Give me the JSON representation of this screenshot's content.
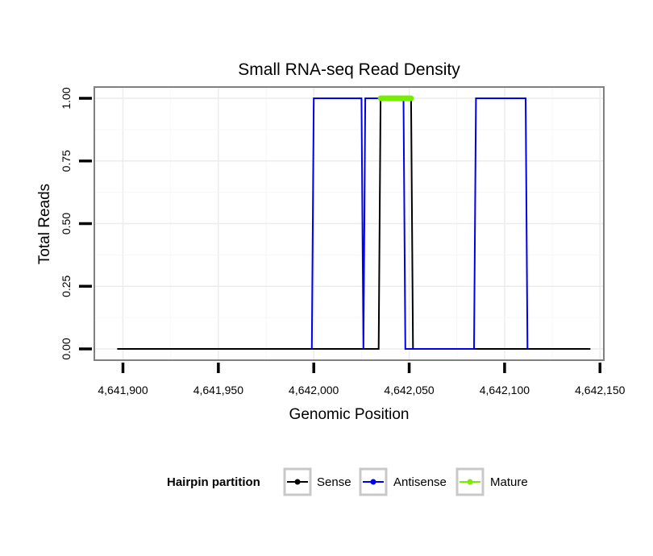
{
  "chart_data": {
    "type": "line",
    "title": "Small RNA-seq Read Density",
    "xlabel": "Genomic Position",
    "ylabel": "Total Reads",
    "xlim": [
      4641885,
      4642152
    ],
    "ylim": [
      -0.045,
      1.045
    ],
    "x_ticks": [
      4641900,
      4641950,
      4642000,
      4642050,
      4642100,
      4642150
    ],
    "x_tick_labels": [
      "4,641,900",
      "4,641,950",
      "4,642,000",
      "4,642,050",
      "4,642,100",
      "4,642,150"
    ],
    "y_ticks": [
      0,
      0.25,
      0.5,
      0.75,
      1.0
    ],
    "y_tick_labels": [
      "0.00",
      "0.25",
      "0.50",
      "0.75",
      "1.00"
    ],
    "grid": true,
    "series": [
      {
        "name": "Sense",
        "color": "#000000",
        "x": [
          4641897,
          4642034,
          4642035,
          4642051,
          4642052,
          4642145
        ],
        "y": [
          0,
          0,
          1,
          1,
          0,
          0
        ]
      },
      {
        "name": "Antisense",
        "color": "#0000ee",
        "x": [
          4641999,
          4642000,
          4642025,
          4642026,
          4642027,
          4642047,
          4642048,
          4642084,
          4642085,
          4642111,
          4642112
        ],
        "y": [
          0,
          1,
          1,
          0,
          1,
          1,
          0,
          0,
          1,
          1,
          0
        ]
      },
      {
        "name": "Mature",
        "color": "#77ee00",
        "x": [
          4642035,
          4642051
        ],
        "y": [
          1,
          1
        ]
      }
    ],
    "legend": {
      "title": "Hairpin partition",
      "position": "bottom",
      "entries": [
        {
          "label": "Sense",
          "color": "#000000"
        },
        {
          "label": "Antisense",
          "color": "#0000ee"
        },
        {
          "label": "Mature",
          "color": "#77ee00"
        }
      ]
    }
  }
}
